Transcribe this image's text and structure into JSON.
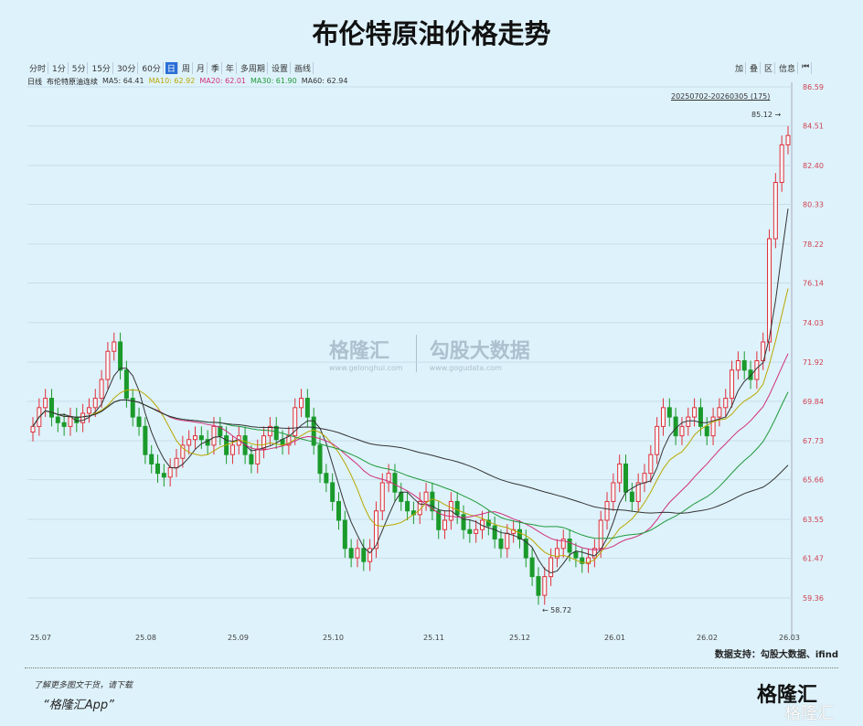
{
  "title": "布伦特原油价格走势",
  "toolbar": [
    "分时",
    "1分",
    "5分",
    "15分",
    "30分",
    "60分",
    "日",
    "周",
    "月",
    "季",
    "年",
    "多周期",
    "设置",
    "画线"
  ],
  "toolbar_active": "日",
  "toolbar_right": [
    "加",
    "叠",
    "区",
    "信息",
    "⏮"
  ],
  "legend": {
    "period": "日线",
    "name": "布伦特原油连续",
    "items": [
      {
        "label": "MA5:",
        "value": "64.41",
        "color": "#333333"
      },
      {
        "label": "MA10:",
        "value": "62.92",
        "color": "#b8a800"
      },
      {
        "label": "MA20:",
        "value": "62.01",
        "color": "#d0307a"
      },
      {
        "label": "MA30:",
        "value": "61.90",
        "color": "#1f9a3a"
      },
      {
        "label": "MA60:",
        "value": "62.94",
        "color": "#333333"
      }
    ]
  },
  "range_label": "20250702-20260305 (175)",
  "watermark": {
    "brand": "格隆汇",
    "brand_sub": "www.gelonghui.com",
    "partner": "勾股大数据",
    "partner_sub": "www.gogudata.com"
  },
  "source": "数据支持：勾股大数据、ifind",
  "promo": {
    "line1": "了解更多图文干货，请下载",
    "line2": "“格隆汇App”"
  },
  "logo": "格隆汇",
  "chart_data": {
    "type": "candlestick",
    "y_ticks": [
      "86.59",
      "84.51",
      "82.40",
      "80.33",
      "78.22",
      "76.14",
      "74.03",
      "71.92",
      "69.84",
      "67.73",
      "65.66",
      "63.55",
      "61.47",
      "59.36"
    ],
    "ylim": [
      58.3,
      86.59
    ],
    "x_ticks": [
      "25.07",
      "25.08",
      "25.09",
      "25.10",
      "25.11",
      "25.12",
      "26.01",
      "26.02",
      "26.03"
    ],
    "max_label": "85.12",
    "min_label": "58.72",
    "up_color": "#e0303a",
    "down_color": "#1a9a2a",
    "close": [
      68.5,
      69.5,
      70,
      69,
      68.7,
      68.5,
      69,
      68.7,
      69.2,
      69.5,
      70,
      71,
      72.5,
      73,
      71.5,
      70,
      69,
      68.5,
      67,
      66.5,
      66,
      65.8,
      66.3,
      66.8,
      67.5,
      67.8,
      68,
      67.8,
      67.5,
      68.5,
      68,
      67,
      67.5,
      68,
      67,
      66.5,
      67.3,
      68,
      68.5,
      67.8,
      67.5,
      68,
      69.5,
      70,
      69,
      67.5,
      66,
      65.5,
      64.5,
      63.5,
      62,
      61.5,
      62,
      61.3,
      62,
      64,
      65.5,
      66,
      65,
      64.5,
      64,
      63.8,
      64.5,
      65,
      64,
      63,
      63.5,
      64.5,
      63.8,
      63,
      62.8,
      63,
      63.5,
      63.2,
      62.5,
      62,
      62.8,
      63,
      62.5,
      61.5,
      60.5,
      59.5,
      60.5,
      61.5,
      62,
      62.5,
      61.8,
      61.5,
      61.2,
      61.5,
      62,
      63.5,
      64.5,
      65.5,
      66.5,
      65,
      64.5,
      65.5,
      66,
      67,
      68.5,
      69.5,
      69,
      68,
      68.5,
      69,
      69.5,
      68.5,
      68,
      69,
      69.5,
      70,
      71.5,
      72,
      71.5,
      71,
      72,
      73,
      78.5,
      81.5,
      83.5,
      84
    ]
  }
}
